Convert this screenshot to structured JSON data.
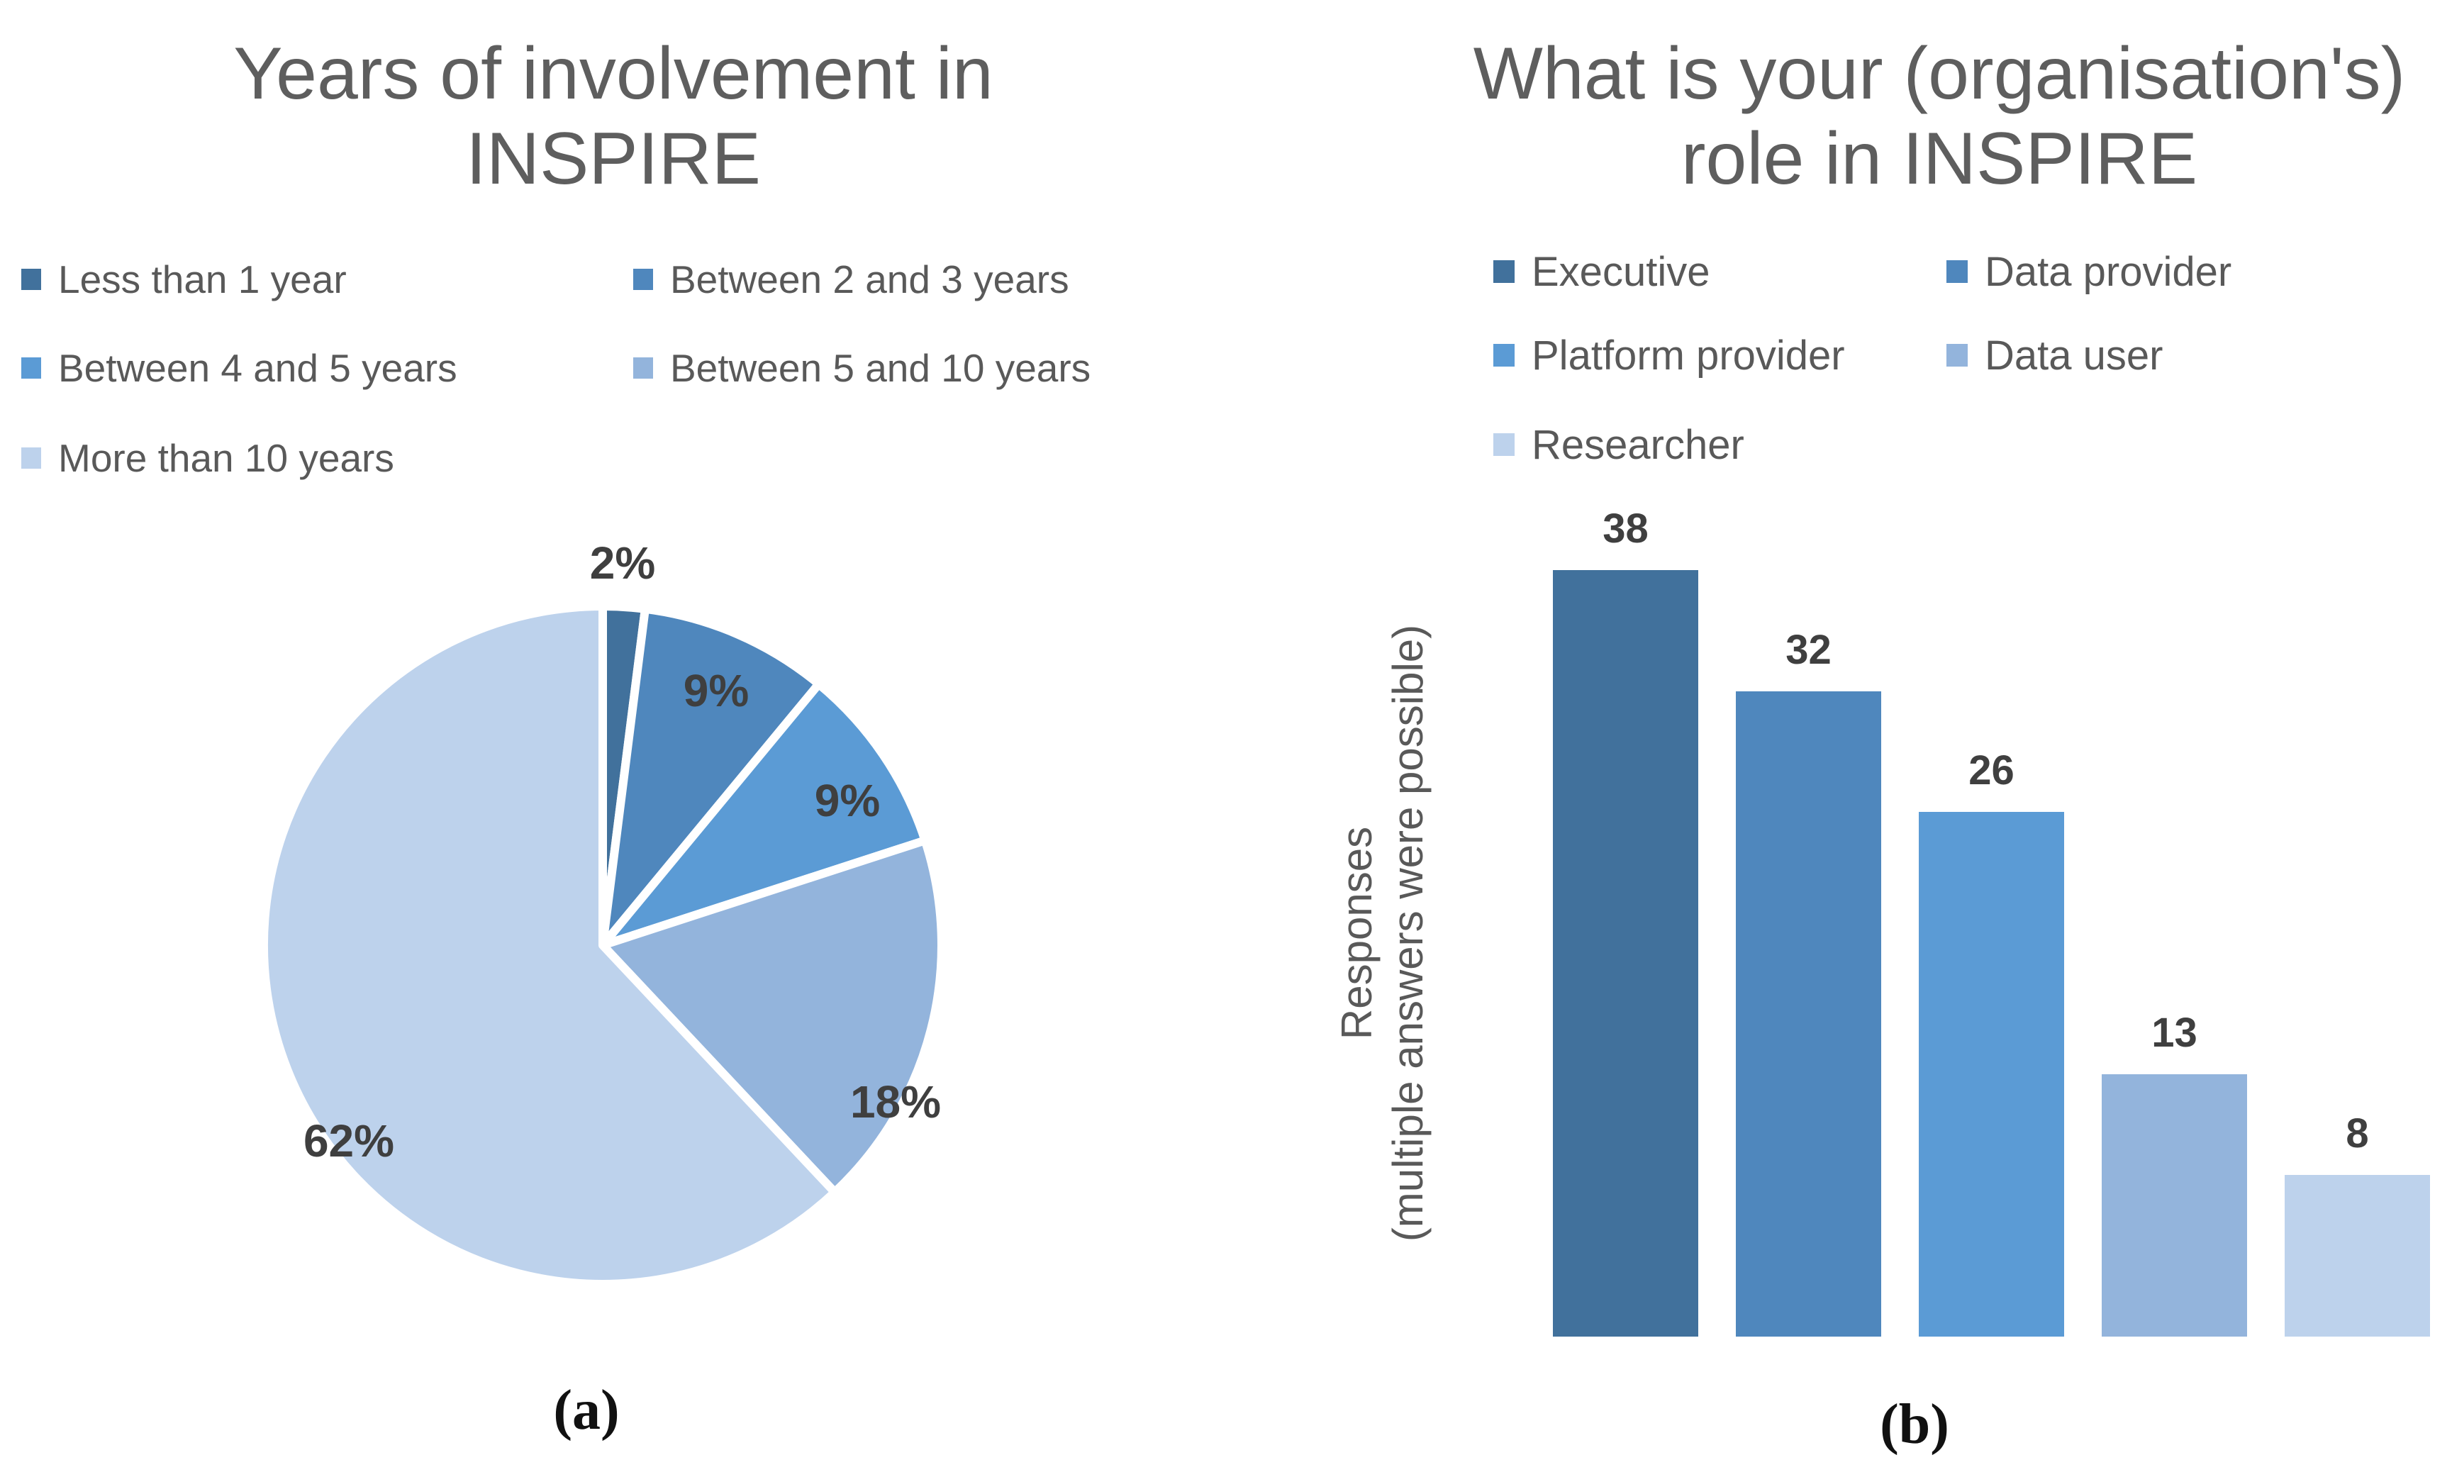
{
  "figure": {
    "captions": {
      "a": "(a)",
      "b": "(b)"
    },
    "background": "#FFFFFF"
  },
  "colors": {
    "palette": [
      "#41719C",
      "#4F87BD",
      "#5B9BD5",
      "#93B4DC",
      "#BDD2EC"
    ],
    "title_text": "#5E5E5E",
    "legend_text": "#595959",
    "data_label_text": "#3F3F3F",
    "caption_text": "#111111"
  },
  "chart_data": [
    {
      "type": "pie",
      "title": "Years of involvement in INSPIRE",
      "title_lines": [
        "Years of involvement in",
        "INSPIRE"
      ],
      "categories": [
        "Less than 1 year",
        "Between 2 and 3 years",
        "Between 4 and 5 years",
        "Between 5 and 10 years",
        "More than 10 years"
      ],
      "values": [
        2,
        9,
        9,
        18,
        62
      ],
      "unit": "percent",
      "slice_labels": [
        "2%",
        "9%",
        "9%",
        "18%",
        "62%"
      ],
      "colors": [
        "#41719C",
        "#4F87BD",
        "#5B9BD5",
        "#93B4DC",
        "#BDD2EC"
      ],
      "start_angle_deg": 0,
      "direction": "clockwise",
      "legend_position": "top-left",
      "slice_separator_color": "#FFFFFF"
    },
    {
      "type": "bar",
      "title": "What is your (organisation's) role in INSPIRE",
      "title_lines": [
        "What is your (organisation's)",
        "role in INSPIRE"
      ],
      "categories": [
        "Executive",
        "Data provider",
        "Platform provider",
        "Data user",
        "Researcher"
      ],
      "values": [
        38,
        32,
        26,
        13,
        8
      ],
      "colors": [
        "#41719C",
        "#4F87BD",
        "#5B9BD5",
        "#93B4DC",
        "#BDD2EC"
      ],
      "ylabel": "Responses (multiple answers were possible)",
      "ylabel_lines": [
        "Responses",
        "(multiple answers were possible)"
      ],
      "xlabel": "",
      "ylim": [
        0,
        40
      ],
      "grid": false,
      "axis_lines": false,
      "value_labels": "above bars",
      "legend_position": "top"
    }
  ]
}
